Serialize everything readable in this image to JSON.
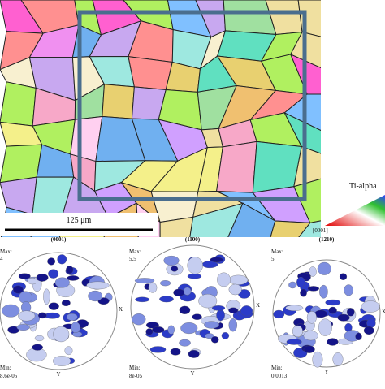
{
  "map": {
    "scale_bar": "125 μm",
    "key": {
      "title": "Ti-alpha",
      "corner": "[0001]"
    }
  },
  "pole_figures": [
    {
      "title": "(0001)",
      "max_label": "Max:",
      "max": "4",
      "min_label": "Min:",
      "min": "8.6e-05",
      "x_axis": "X",
      "y_axis": "Y"
    },
    {
      "title": "(11̄00)",
      "max_label": "Max:",
      "max": "5.5",
      "min_label": "Min:",
      "min": "8e-05",
      "x_axis": "X",
      "y_axis": "Y"
    },
    {
      "title": "(12̄10)",
      "max_label": "Max:",
      "max": "5",
      "min_label": "Min:",
      "min": "0.0013",
      "x_axis": "X",
      "y_axis": "Y"
    }
  ]
}
